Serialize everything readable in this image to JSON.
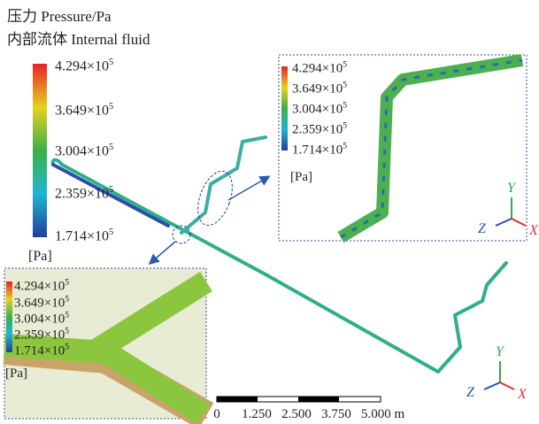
{
  "title": {
    "line1": "压力 Pressure/Pa",
    "line2": "内部流体 Internal fluid"
  },
  "legend": {
    "labels": [
      {
        "mantissa": "4.294×10",
        "exponent": "5"
      },
      {
        "mantissa": "3.649×10",
        "exponent": "5"
      },
      {
        "mantissa": "3.004×10",
        "exponent": "5"
      },
      {
        "mantissa": "2.359×10",
        "exponent": "5"
      },
      {
        "mantissa": "1.714×10",
        "exponent": "5"
      }
    ],
    "unit": "[Pa]"
  },
  "scale_bar": {
    "labels": [
      "0",
      "1.250",
      "2.500",
      "3.750",
      "5.000 m"
    ]
  },
  "axes": {
    "y": "Y",
    "z": "Z",
    "x": "X"
  }
}
